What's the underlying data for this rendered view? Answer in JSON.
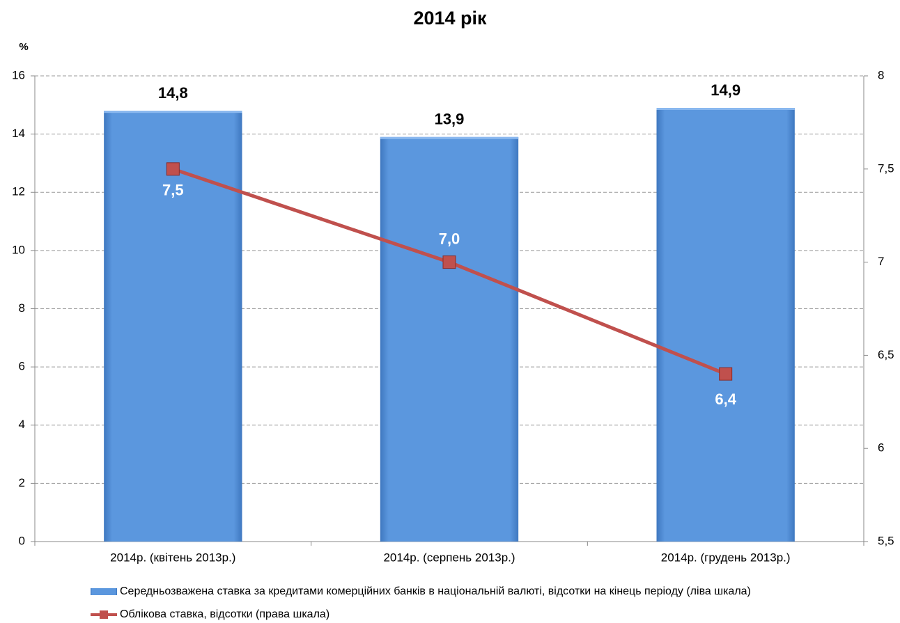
{
  "chart_data": {
    "type": "bar",
    "title": "2014 рік",
    "y_label": "%",
    "categories": [
      "2014р. (квітень  2013р.)",
      "2014р. (серпень 2013р.)",
      "2014р. (грудень 2013р.)"
    ],
    "series": [
      {
        "name": "Середньозважена ставка за кредитами комерційних банків в національній валюті, відсотки на кінець періоду (ліва шкала)",
        "type": "bar",
        "color": "#5b97de",
        "values": [
          14.8,
          13.9,
          14.9
        ],
        "value_labels": [
          "14,8",
          "13,9",
          "14,9"
        ]
      },
      {
        "name": "Облікова ставка, відсотки (права шкала)",
        "type": "line",
        "axis": "y2",
        "color": "#c0504d",
        "values": [
          7.5,
          7.0,
          6.4
        ],
        "value_labels": [
          "7,5",
          "7,0",
          "6,4"
        ]
      }
    ],
    "ylim": [
      0,
      16
    ],
    "yticks": [
      0,
      2,
      4,
      6,
      8,
      10,
      12,
      14,
      16
    ],
    "y2lim": [
      5.5,
      8
    ],
    "y2ticks": [
      {
        "value": 5.5,
        "label": "5,5"
      },
      6,
      {
        "value": 6.5,
        "label": "6,5"
      },
      7,
      {
        "value": 7.5,
        "label": "7,5"
      },
      8
    ],
    "grid": true
  }
}
